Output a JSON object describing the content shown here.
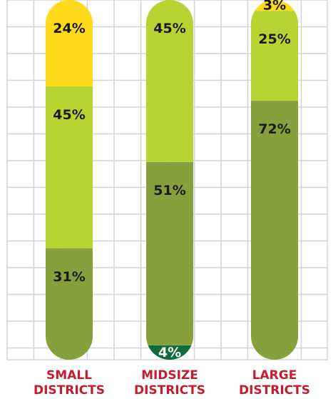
{
  "chart_data": {
    "type": "bar",
    "stacked": true,
    "orientation": "vertical",
    "categories": [
      "SMALL DISTRICTS",
      "MIDSIZE DISTRICTS",
      "LARGE DISTRICTS"
    ],
    "category_lines": [
      [
        "SMALL",
        "DISTRICTS"
      ],
      [
        "MIDSIZE",
        "DISTRICTS"
      ],
      [
        "LARGE",
        "DISTRICTS"
      ]
    ],
    "bars": [
      {
        "category": "SMALL DISTRICTS",
        "segments": [
          {
            "value": 31,
            "label": "31%",
            "color": "#88a03c"
          },
          {
            "value": 45,
            "label": "45%",
            "color": "#b8d432"
          },
          {
            "value": 24,
            "label": "24%",
            "color": "#fddb1a"
          }
        ]
      },
      {
        "category": "MIDSIZE DISTRICTS",
        "segments": [
          {
            "value": 4,
            "label": "4%",
            "color": "#0e6b3a"
          },
          {
            "value": 51,
            "label": "51%",
            "color": "#88a03c"
          },
          {
            "value": 45,
            "label": "45%",
            "color": "#b8d432"
          }
        ]
      },
      {
        "category": "LARGE DISTRICTS",
        "segments": [
          {
            "value": 72,
            "label": "72%",
            "color": "#88a03c"
          },
          {
            "value": 25,
            "label": "25%",
            "color": "#b8d432"
          },
          {
            "value": 3,
            "label": "3%",
            "color": "#fddb1a"
          }
        ]
      }
    ],
    "ylim": [
      0,
      100
    ],
    "grid": true,
    "legend": "none",
    "title": "",
    "xlabel": "",
    "ylabel": "",
    "colors": {
      "grid": "#d4d4d4",
      "category_text": "#c41d2e",
      "dark_segment_text": "#ffffff",
      "segment_text": "#1a1a1a"
    }
  }
}
